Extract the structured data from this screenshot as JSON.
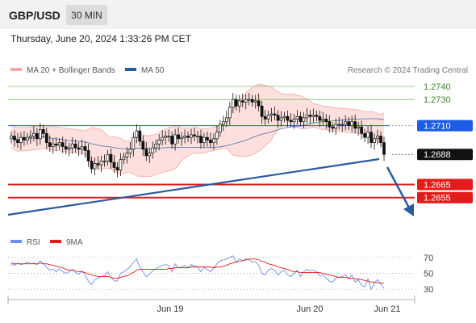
{
  "header": {
    "symbol": "GBP/USD",
    "timeframe": "30 MIN",
    "datetime": "Thursday, June 20, 2024 1:33:26 PM CET"
  },
  "colors": {
    "bollinger": "#f4a9a3",
    "bollinger_fill": "#fde0dd",
    "ma50": "#2b5aa0",
    "candle": "#111111",
    "resistance": "#7cc46a",
    "pivot": "#1d5ce6",
    "support": "#e31b1b",
    "rsi": "#6d8ee8",
    "rsi_ma": "#e31b1b",
    "trendline": "#2b5aa0"
  },
  "chart_data": [
    {
      "type": "candlestick",
      "title": "",
      "legend": [
        {
          "name": "MA 20 + Bollinger Bands",
          "color": "#f4a9a3"
        },
        {
          "name": "MA 50",
          "color": "#2b5aa0"
        }
      ],
      "legend_position": "top-left",
      "source": "Research © 2024 Trading Central",
      "x_ticks": [
        "Jun 19",
        "Jun 20",
        "Jun 21"
      ],
      "ylim": [
        1.2645,
        1.2746
      ],
      "price_levels": [
        {
          "label": "1.2740",
          "value": 1.274,
          "kind": "resistance"
        },
        {
          "label": "1.2730",
          "value": 1.273,
          "kind": "resistance"
        },
        {
          "label": "1.2710",
          "value": 1.271,
          "kind": "pivot"
        },
        {
          "label": "1.2688",
          "value": 1.2688,
          "kind": "last"
        },
        {
          "label": "1.2665",
          "value": 1.2665,
          "kind": "support"
        },
        {
          "label": "1.2655",
          "value": 1.2655,
          "kind": "support"
        }
      ],
      "close": [
        1.2702,
        1.2699,
        1.2697,
        1.2701,
        1.2699,
        1.2701,
        1.2702,
        1.2704,
        1.27,
        1.2707,
        1.2704,
        1.2697,
        1.2694,
        1.2696,
        1.2695,
        1.2697,
        1.2694,
        1.2692,
        1.2693,
        1.2696,
        1.2693,
        1.2692,
        1.2694,
        1.2691,
        1.2683,
        1.2677,
        1.2681,
        1.268,
        1.2683,
        1.2683,
        1.2688,
        1.2682,
        1.2678,
        1.2676,
        1.2684,
        1.2686,
        1.2689,
        1.2692,
        1.2701,
        1.2706,
        1.2698,
        1.2692,
        1.2687,
        1.2689,
        1.2693,
        1.2696,
        1.2699,
        1.2701,
        1.2702,
        1.2702,
        1.2696,
        1.2703,
        1.27,
        1.2701,
        1.2702,
        1.2701,
        1.2703,
        1.2702,
        1.2702,
        1.2697,
        1.2701,
        1.2699,
        1.2697,
        1.27,
        1.2705,
        1.2711,
        1.2713,
        1.2716,
        1.2724,
        1.273,
        1.2725,
        1.2729,
        1.2728,
        1.273,
        1.273,
        1.2728,
        1.2729,
        1.2725,
        1.2717,
        1.2715,
        1.2718,
        1.2719,
        1.2718,
        1.2714,
        1.2716,
        1.2717,
        1.2714,
        1.2713,
        1.2715,
        1.2717,
        1.2713,
        1.2716,
        1.2718,
        1.2717,
        1.2718,
        1.2717,
        1.2714,
        1.2715,
        1.2713,
        1.2709,
        1.2708,
        1.2711,
        1.2711,
        1.2711,
        1.2713,
        1.271,
        1.2713,
        1.2708,
        1.2709,
        1.2704,
        1.2701,
        1.2705,
        1.2697,
        1.27,
        1.2702,
        1.2697,
        1.2688
      ],
      "rsi": {
        "name": "RSI",
        "ma_name": "9MA",
        "levels": [
          70,
          50,
          30
        ],
        "ylim": [
          20,
          80
        ],
        "rsi": [
          62,
          60,
          63,
          61,
          62,
          64,
          62,
          63,
          61,
          66,
          62,
          58,
          54,
          55,
          52,
          56,
          52,
          50,
          52,
          55,
          51,
          49,
          53,
          48,
          40,
          36,
          42,
          44,
          46,
          47,
          52,
          45,
          41,
          40,
          50,
          52,
          55,
          58,
          64,
          68,
          58,
          52,
          46,
          49,
          53,
          56,
          58,
          60,
          61,
          60,
          52,
          62,
          57,
          58,
          60,
          57,
          61,
          59,
          58,
          52,
          58,
          55,
          52,
          57,
          62,
          66,
          67,
          68,
          70,
          72,
          64,
          68,
          66,
          68,
          67,
          64,
          65,
          60,
          50,
          48,
          54,
          56,
          54,
          48,
          52,
          54,
          48,
          46,
          50,
          54,
          46,
          52,
          55,
          53,
          54,
          52,
          47,
          48,
          44,
          40,
          39,
          44,
          45,
          46,
          48,
          43,
          48,
          39,
          42,
          35,
          33,
          43,
          30,
          38,
          42,
          36,
          31
        ],
        "ma": [
          63,
          62,
          62,
          62,
          62,
          62,
          62,
          62,
          62,
          63,
          62,
          62,
          61,
          60,
          59,
          58,
          57,
          55,
          54,
          54,
          53,
          52,
          52,
          51,
          49,
          48,
          47,
          46,
          46,
          46,
          46,
          45,
          44,
          44,
          45,
          46,
          47,
          49,
          51,
          54,
          55,
          55,
          55,
          55,
          55,
          55,
          55,
          55,
          55,
          56,
          56,
          57,
          57,
          57,
          57,
          57,
          58,
          58,
          58,
          58,
          58,
          58,
          58,
          57,
          58,
          58,
          59,
          60,
          62,
          63,
          64,
          65,
          66,
          67,
          68,
          68,
          68,
          67,
          65,
          64,
          62,
          61,
          60,
          58,
          57,
          56,
          55,
          53,
          52,
          52,
          51,
          51,
          51,
          51,
          51,
          51,
          51,
          50,
          49,
          48,
          47,
          46,
          45,
          45,
          45,
          44,
          44,
          43,
          43,
          42,
          41,
          40,
          39,
          39,
          38,
          38,
          37
        ]
      }
    }
  ]
}
